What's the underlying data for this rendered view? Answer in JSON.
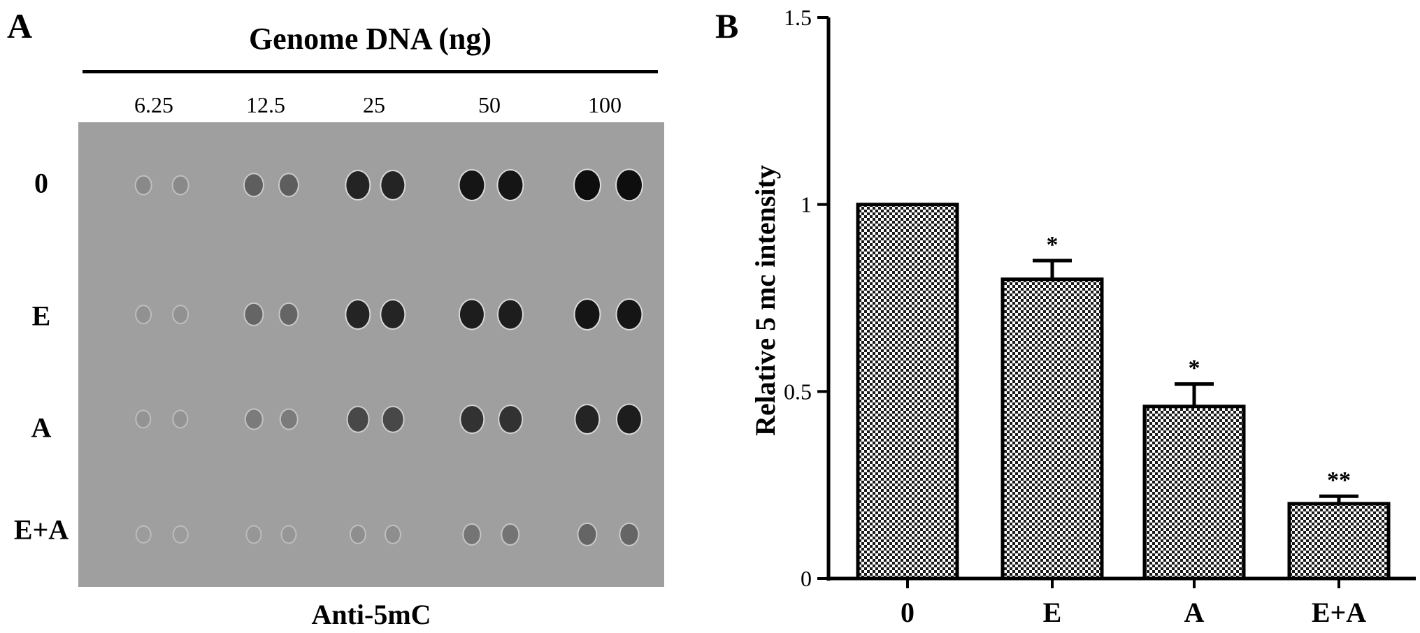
{
  "panel_a": {
    "letter": "A",
    "title": "Genome DNA (ng)",
    "doses": [
      "6.25",
      "12.5",
      "25",
      "50",
      "100"
    ],
    "rows": [
      "0",
      "E",
      "A",
      "E+A"
    ],
    "caption": "Anti-5mC",
    "dot_intensity": [
      [
        0.15,
        0.15,
        0.45,
        0.45,
        0.85,
        0.85,
        0.95,
        0.95,
        1.0,
        1.0
      ],
      [
        0.1,
        0.1,
        0.4,
        0.4,
        0.85,
        0.85,
        0.9,
        0.9,
        0.95,
        0.95
      ],
      [
        0.08,
        0.08,
        0.25,
        0.25,
        0.6,
        0.6,
        0.75,
        0.75,
        0.85,
        0.9
      ],
      [
        0.03,
        0.03,
        0.06,
        0.06,
        0.12,
        0.12,
        0.3,
        0.3,
        0.4,
        0.4
      ]
    ],
    "colors": {
      "membrane": "#9f9f9f",
      "dot": "#111111"
    }
  },
  "panel_b": {
    "letter": "B"
  },
  "chart_data": {
    "type": "bar",
    "categories": [
      "0",
      "E",
      "A",
      "E+A"
    ],
    "values": [
      1.0,
      0.8,
      0.46,
      0.2
    ],
    "errors": [
      0.0,
      0.05,
      0.06,
      0.02
    ],
    "significance": [
      "",
      "*",
      "*",
      "**"
    ],
    "ylabel": "Relative 5 mc intensity",
    "xlabel": "",
    "ylim": [
      0,
      1.5
    ],
    "yticks": [
      0,
      0.5,
      1,
      1.5
    ],
    "ytick_labels": [
      "0",
      "0.5",
      "1",
      "1.5"
    ],
    "bar_fill": "checkered",
    "colors": {
      "bar": "#000000",
      "fill_light": "#ffffff"
    }
  }
}
